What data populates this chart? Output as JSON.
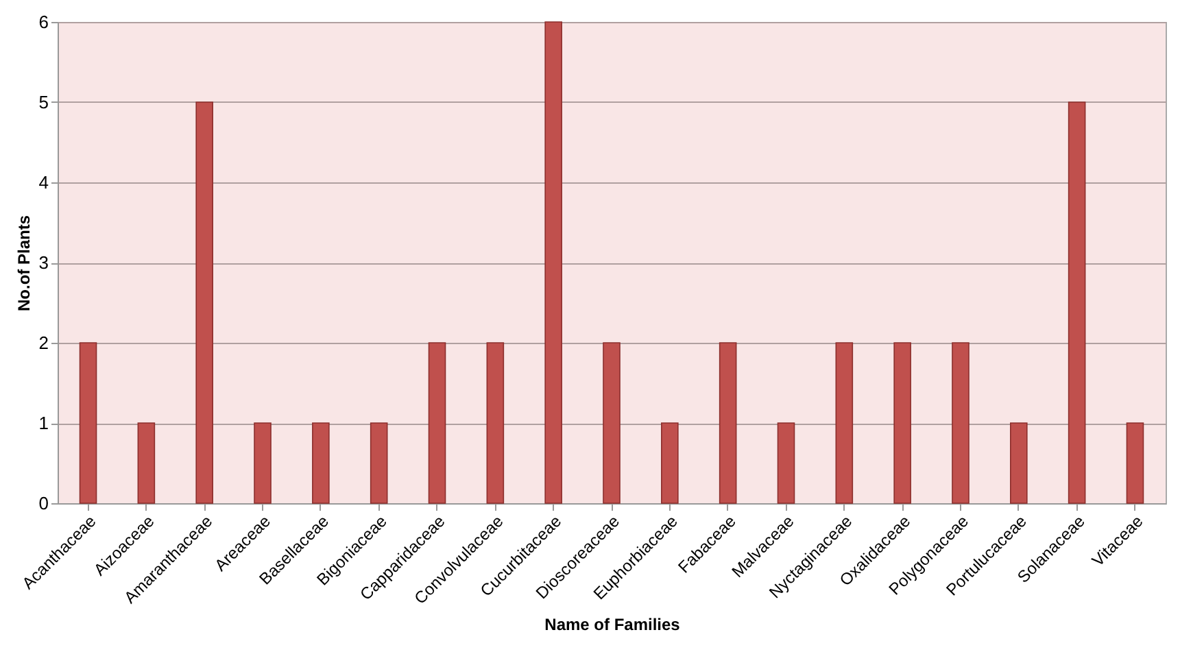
{
  "chart_data": {
    "type": "bar",
    "xlabel": "Name of Families",
    "ylabel": "No.of Plants",
    "categories": [
      "Acanthaceae",
      "Aizoaceae",
      "Amaranthaceae",
      "Areaceae",
      "Basellaceae",
      "Bigoniaceae",
      "Capparidaceae",
      "Convolvulaceae",
      "Cucurbitaceae",
      "Dioscoreaceae",
      "Euphorbiaceae",
      "Fabaceae",
      "Malvaceae",
      "Nyctaginaceae",
      "Oxalidaceae",
      "Polygonaceae",
      "Portulucaceae",
      "Solanaceae",
      "Vitaceae"
    ],
    "values": [
      2,
      1,
      5,
      1,
      1,
      1,
      2,
      2,
      6,
      2,
      1,
      2,
      1,
      2,
      2,
      2,
      1,
      5,
      1
    ],
    "color": "#c0504d",
    "ylim": [
      0,
      6
    ],
    "yticks": [
      0,
      1,
      2,
      3,
      4,
      5,
      6
    ],
    "grid": "y"
  }
}
